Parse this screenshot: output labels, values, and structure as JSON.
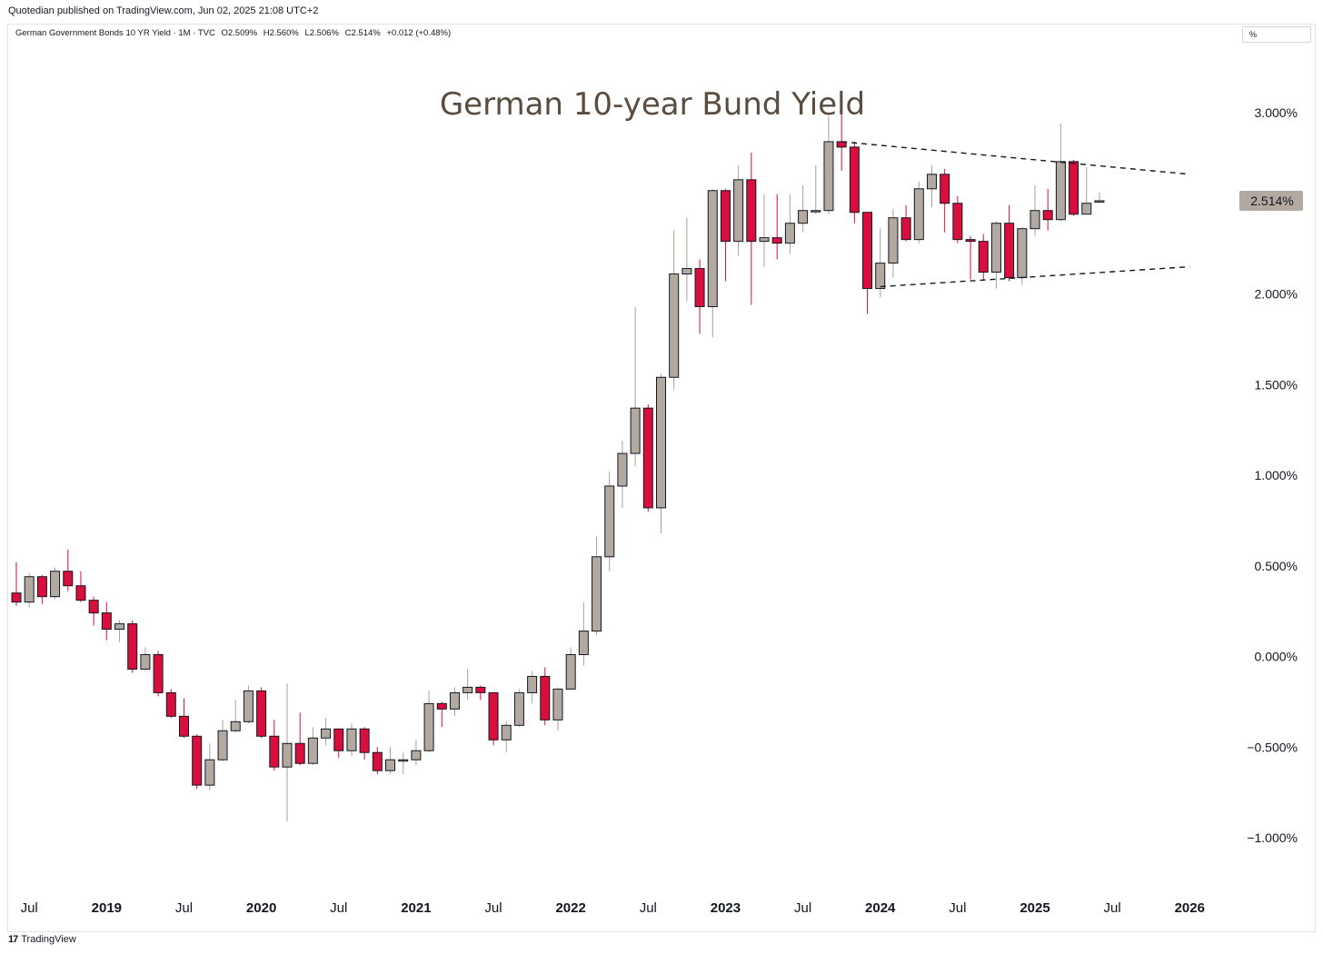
{
  "header": {
    "publisher": "Quotedian published on TradingView.com, Jun 02, 2025 21:08 UTC+2"
  },
  "legend": {
    "symbol": "German Government Bonds 10 YR Yield · 1M · TVC",
    "open": "O2.509%",
    "high": "H2.560%",
    "low": "L2.506%",
    "close": "C2.514%",
    "change": "+0.012 (+0.48%)"
  },
  "unit_label": "%",
  "footer": {
    "logo_mark": "17",
    "brand": "TradingView"
  },
  "colors": {
    "up_fill": "#b2aaa1",
    "down_fill": "#d80f3c",
    "up_wick": "#a8a097",
    "down_wick": "#d80f3c",
    "outline": "#131722",
    "title": "#5a4c3e",
    "last_price_bg": "#b2aaa1"
  },
  "chart_data": {
    "type": "candlestick",
    "title": "German 10-year Bund Yield",
    "ylim": [
      -1.2,
      3.25
    ],
    "y_ticks": [
      3.0,
      2.5,
      2.0,
      1.5,
      1.0,
      0.5,
      0.0,
      -0.5,
      -1.0
    ],
    "y_tick_labels": [
      "3.000%",
      "2.500%",
      "2.000%",
      "1.500%",
      "1.000%",
      "0.500%",
      "0.000%",
      "−0.500%",
      "−1.000%"
    ],
    "x_start": "2018-06",
    "x_end": "2026-02",
    "x_ticks": [
      {
        "date": "2018-07",
        "label": "Jul",
        "bold": false
      },
      {
        "date": "2019-01",
        "label": "2019",
        "bold": true
      },
      {
        "date": "2019-07",
        "label": "Jul",
        "bold": false
      },
      {
        "date": "2020-01",
        "label": "2020",
        "bold": true
      },
      {
        "date": "2020-07",
        "label": "Jul",
        "bold": false
      },
      {
        "date": "2021-01",
        "label": "2021",
        "bold": true
      },
      {
        "date": "2021-07",
        "label": "Jul",
        "bold": false
      },
      {
        "date": "2022-01",
        "label": "2022",
        "bold": true
      },
      {
        "date": "2022-07",
        "label": "Jul",
        "bold": false
      },
      {
        "date": "2023-01",
        "label": "2023",
        "bold": true
      },
      {
        "date": "2023-07",
        "label": "Jul",
        "bold": false
      },
      {
        "date": "2024-01",
        "label": "2024",
        "bold": true
      },
      {
        "date": "2024-07",
        "label": "Jul",
        "bold": false
      },
      {
        "date": "2025-01",
        "label": "2025",
        "bold": true
      },
      {
        "date": "2025-07",
        "label": "Jul",
        "bold": false
      },
      {
        "date": "2026-01",
        "label": "2026",
        "bold": true
      }
    ],
    "last_price": 2.514,
    "last_price_label": "2.514%",
    "candles": [
      {
        "date": "2018-06",
        "o": 0.35,
        "h": 0.52,
        "l": 0.28,
        "c": 0.3
      },
      {
        "date": "2018-07",
        "o": 0.3,
        "h": 0.46,
        "l": 0.27,
        "c": 0.44
      },
      {
        "date": "2018-08",
        "o": 0.44,
        "h": 0.45,
        "l": 0.29,
        "c": 0.33
      },
      {
        "date": "2018-09",
        "o": 0.33,
        "h": 0.49,
        "l": 0.32,
        "c": 0.47
      },
      {
        "date": "2018-10",
        "o": 0.47,
        "h": 0.59,
        "l": 0.36,
        "c": 0.39
      },
      {
        "date": "2018-11",
        "o": 0.39,
        "h": 0.47,
        "l": 0.3,
        "c": 0.31
      },
      {
        "date": "2018-12",
        "o": 0.31,
        "h": 0.33,
        "l": 0.17,
        "c": 0.24
      },
      {
        "date": "2019-01",
        "o": 0.24,
        "h": 0.3,
        "l": 0.09,
        "c": 0.15
      },
      {
        "date": "2019-02",
        "o": 0.15,
        "h": 0.2,
        "l": 0.08,
        "c": 0.18
      },
      {
        "date": "2019-03",
        "o": 0.18,
        "h": 0.2,
        "l": -0.09,
        "c": -0.07
      },
      {
        "date": "2019-04",
        "o": -0.07,
        "h": 0.05,
        "l": -0.08,
        "c": 0.01
      },
      {
        "date": "2019-05",
        "o": 0.01,
        "h": 0.03,
        "l": -0.22,
        "c": -0.2
      },
      {
        "date": "2019-06",
        "o": -0.2,
        "h": -0.18,
        "l": -0.34,
        "c": -0.33
      },
      {
        "date": "2019-07",
        "o": -0.33,
        "h": -0.23,
        "l": -0.45,
        "c": -0.44
      },
      {
        "date": "2019-08",
        "o": -0.44,
        "h": -0.43,
        "l": -0.73,
        "c": -0.71
      },
      {
        "date": "2019-09",
        "o": -0.71,
        "h": -0.48,
        "l": -0.74,
        "c": -0.57
      },
      {
        "date": "2019-10",
        "o": -0.57,
        "h": -0.35,
        "l": -0.58,
        "c": -0.41
      },
      {
        "date": "2019-11",
        "o": -0.41,
        "h": -0.24,
        "l": -0.42,
        "c": -0.36
      },
      {
        "date": "2019-12",
        "o": -0.36,
        "h": -0.16,
        "l": -0.37,
        "c": -0.19
      },
      {
        "date": "2020-01",
        "o": -0.19,
        "h": -0.17,
        "l": -0.45,
        "c": -0.44
      },
      {
        "date": "2020-02",
        "o": -0.44,
        "h": -0.35,
        "l": -0.63,
        "c": -0.61
      },
      {
        "date": "2020-03",
        "o": -0.61,
        "h": -0.15,
        "l": -0.91,
        "c": -0.48
      },
      {
        "date": "2020-04",
        "o": -0.48,
        "h": -0.31,
        "l": -0.6,
        "c": -0.59
      },
      {
        "date": "2020-05",
        "o": -0.59,
        "h": -0.39,
        "l": -0.6,
        "c": -0.45
      },
      {
        "date": "2020-06",
        "o": -0.45,
        "h": -0.34,
        "l": -0.49,
        "c": -0.4
      },
      {
        "date": "2020-07",
        "o": -0.4,
        "h": -0.4,
        "l": -0.56,
        "c": -0.52
      },
      {
        "date": "2020-08",
        "o": -0.52,
        "h": -0.37,
        "l": -0.55,
        "c": -0.4
      },
      {
        "date": "2020-09",
        "o": -0.4,
        "h": -0.39,
        "l": -0.57,
        "c": -0.53
      },
      {
        "date": "2020-10",
        "o": -0.53,
        "h": -0.5,
        "l": -0.65,
        "c": -0.63
      },
      {
        "date": "2020-11",
        "o": -0.63,
        "h": -0.5,
        "l": -0.65,
        "c": -0.57
      },
      {
        "date": "2020-12",
        "o": -0.57,
        "h": -0.53,
        "l": -0.65,
        "c": -0.57
      },
      {
        "date": "2021-01",
        "o": -0.57,
        "h": -0.46,
        "l": -0.6,
        "c": -0.52
      },
      {
        "date": "2021-02",
        "o": -0.52,
        "h": -0.19,
        "l": -0.53,
        "c": -0.26
      },
      {
        "date": "2021-03",
        "o": -0.26,
        "h": -0.25,
        "l": -0.39,
        "c": -0.29
      },
      {
        "date": "2021-04",
        "o": -0.29,
        "h": -0.17,
        "l": -0.33,
        "c": -0.2
      },
      {
        "date": "2021-05",
        "o": -0.2,
        "h": -0.07,
        "l": -0.24,
        "c": -0.17
      },
      {
        "date": "2021-06",
        "o": -0.17,
        "h": -0.16,
        "l": -0.24,
        "c": -0.2
      },
      {
        "date": "2021-07",
        "o": -0.2,
        "h": -0.2,
        "l": -0.49,
        "c": -0.46
      },
      {
        "date": "2021-08",
        "o": -0.46,
        "h": -0.36,
        "l": -0.53,
        "c": -0.38
      },
      {
        "date": "2021-09",
        "o": -0.38,
        "h": -0.18,
        "l": -0.39,
        "c": -0.2
      },
      {
        "date": "2021-10",
        "o": -0.2,
        "h": -0.08,
        "l": -0.26,
        "c": -0.11
      },
      {
        "date": "2021-11",
        "o": -0.11,
        "h": -0.06,
        "l": -0.38,
        "c": -0.35
      },
      {
        "date": "2021-12",
        "o": -0.35,
        "h": -0.17,
        "l": -0.41,
        "c": -0.18
      },
      {
        "date": "2022-01",
        "o": -0.18,
        "h": 0.05,
        "l": -0.18,
        "c": 0.01
      },
      {
        "date": "2022-02",
        "o": 0.01,
        "h": 0.3,
        "l": -0.05,
        "c": 0.14
      },
      {
        "date": "2022-03",
        "o": 0.14,
        "h": 0.66,
        "l": 0.12,
        "c": 0.55
      },
      {
        "date": "2022-04",
        "o": 0.55,
        "h": 1.02,
        "l": 0.47,
        "c": 0.94
      },
      {
        "date": "2022-05",
        "o": 0.94,
        "h": 1.19,
        "l": 0.82,
        "c": 1.12
      },
      {
        "date": "2022-06",
        "o": 1.12,
        "h": 1.93,
        "l": 1.05,
        "c": 1.37
      },
      {
        "date": "2022-07",
        "o": 1.37,
        "h": 1.39,
        "l": 0.8,
        "c": 0.82
      },
      {
        "date": "2022-08",
        "o": 0.82,
        "h": 1.56,
        "l": 0.68,
        "c": 1.54
      },
      {
        "date": "2022-09",
        "o": 1.54,
        "h": 2.35,
        "l": 1.47,
        "c": 2.11
      },
      {
        "date": "2022-10",
        "o": 2.11,
        "h": 2.42,
        "l": 1.96,
        "c": 2.14
      },
      {
        "date": "2022-11",
        "o": 2.14,
        "h": 2.19,
        "l": 1.78,
        "c": 1.93
      },
      {
        "date": "2022-12",
        "o": 1.93,
        "h": 2.58,
        "l": 1.76,
        "c": 2.57
      },
      {
        "date": "2023-01",
        "o": 2.57,
        "h": 2.58,
        "l": 2.07,
        "c": 2.29
      },
      {
        "date": "2023-02",
        "o": 2.29,
        "h": 2.71,
        "l": 2.21,
        "c": 2.63
      },
      {
        "date": "2023-03",
        "o": 2.63,
        "h": 2.78,
        "l": 1.94,
        "c": 2.29
      },
      {
        "date": "2023-04",
        "o": 2.29,
        "h": 2.55,
        "l": 2.15,
        "c": 2.31
      },
      {
        "date": "2023-05",
        "o": 2.31,
        "h": 2.55,
        "l": 2.19,
        "c": 2.28
      },
      {
        "date": "2023-06",
        "o": 2.28,
        "h": 2.55,
        "l": 2.22,
        "c": 2.39
      },
      {
        "date": "2023-07",
        "o": 2.39,
        "h": 2.6,
        "l": 2.34,
        "c": 2.46
      },
      {
        "date": "2023-08",
        "o": 2.46,
        "h": 2.71,
        "l": 2.44,
        "c": 2.46
      },
      {
        "date": "2023-09",
        "o": 2.46,
        "h": 2.98,
        "l": 2.44,
        "c": 2.84
      },
      {
        "date": "2023-10",
        "o": 2.84,
        "h": 3.02,
        "l": 2.68,
        "c": 2.81
      },
      {
        "date": "2023-11",
        "o": 2.81,
        "h": 2.84,
        "l": 2.39,
        "c": 2.45
      },
      {
        "date": "2023-12",
        "o": 2.45,
        "h": 2.45,
        "l": 1.89,
        "c": 2.03
      },
      {
        "date": "2024-01",
        "o": 2.03,
        "h": 2.36,
        "l": 1.98,
        "c": 2.17
      },
      {
        "date": "2024-02",
        "o": 2.17,
        "h": 2.47,
        "l": 2.09,
        "c": 2.42
      },
      {
        "date": "2024-03",
        "o": 2.42,
        "h": 2.49,
        "l": 2.29,
        "c": 2.3
      },
      {
        "date": "2024-04",
        "o": 2.3,
        "h": 2.62,
        "l": 2.28,
        "c": 2.58
      },
      {
        "date": "2024-05",
        "o": 2.58,
        "h": 2.71,
        "l": 2.48,
        "c": 2.66
      },
      {
        "date": "2024-06",
        "o": 2.66,
        "h": 2.69,
        "l": 2.34,
        "c": 2.5
      },
      {
        "date": "2024-07",
        "o": 2.5,
        "h": 2.54,
        "l": 2.28,
        "c": 2.3
      },
      {
        "date": "2024-08",
        "o": 2.3,
        "h": 2.32,
        "l": 2.08,
        "c": 2.29
      },
      {
        "date": "2024-09",
        "o": 2.29,
        "h": 2.33,
        "l": 2.08,
        "c": 2.12
      },
      {
        "date": "2024-10",
        "o": 2.12,
        "h": 2.4,
        "l": 2.03,
        "c": 2.39
      },
      {
        "date": "2024-11",
        "o": 2.39,
        "h": 2.49,
        "l": 2.07,
        "c": 2.09
      },
      {
        "date": "2024-12",
        "o": 2.09,
        "h": 2.37,
        "l": 2.05,
        "c": 2.36
      },
      {
        "date": "2025-01",
        "o": 2.36,
        "h": 2.6,
        "l": 2.32,
        "c": 2.46
      },
      {
        "date": "2025-02",
        "o": 2.46,
        "h": 2.58,
        "l": 2.35,
        "c": 2.41
      },
      {
        "date": "2025-03",
        "o": 2.41,
        "h": 2.94,
        "l": 2.4,
        "c": 2.73
      },
      {
        "date": "2025-04",
        "o": 2.73,
        "h": 2.74,
        "l": 2.43,
        "c": 2.44
      },
      {
        "date": "2025-05",
        "o": 2.44,
        "h": 2.7,
        "l": 2.44,
        "c": 2.5
      },
      {
        "date": "2025-06",
        "o": 2.509,
        "h": 2.56,
        "l": 2.506,
        "c": 2.514
      }
    ],
    "trendlines": [
      {
        "name": "upper",
        "from": {
          "date": "2023-10",
          "value": 2.84
        },
        "to": {
          "date": "2026-01",
          "value": 2.66
        },
        "style": "dashed"
      },
      {
        "name": "lower",
        "from": {
          "date": "2024-01",
          "value": 2.04
        },
        "to": {
          "date": "2026-01",
          "value": 2.15
        },
        "style": "dashed"
      }
    ]
  }
}
